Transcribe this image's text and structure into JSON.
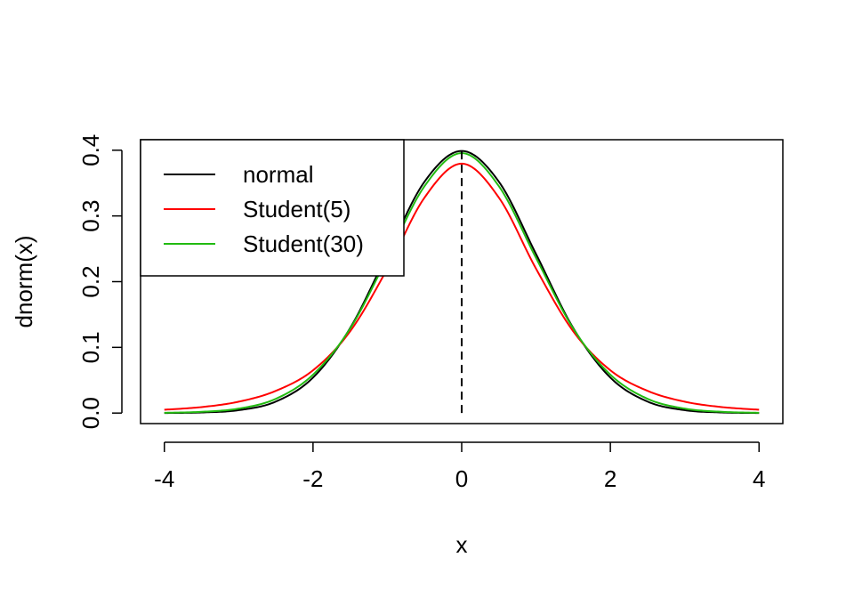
{
  "chart_data": {
    "type": "line",
    "xlabel": "x",
    "ylabel": "dnorm(x)",
    "xlim": [
      -4.32,
      4.32
    ],
    "ylim": [
      -0.016,
      0.416
    ],
    "x_ticks": [
      -4,
      -2,
      0,
      2,
      4
    ],
    "x_tick_labels": [
      "-4",
      "-2",
      "0",
      "2",
      "4"
    ],
    "y_ticks": [
      0.0,
      0.1,
      0.2,
      0.3,
      0.4
    ],
    "y_tick_labels": [
      "0.0",
      "0.1",
      "0.2",
      "0.3",
      "0.4"
    ],
    "grid": false,
    "legend_position": "top-left",
    "reference_line": {
      "x": 0,
      "style": "dashed",
      "color": "#000000"
    },
    "series": [
      {
        "name": "normal",
        "color": "#000000",
        "x": [
          -4,
          -3.5,
          -3,
          -2.5,
          -2,
          -1.5,
          -1,
          -0.5,
          0,
          0.5,
          1,
          1.5,
          2,
          2.5,
          3,
          3.5,
          4
        ],
        "y": [
          0.0001,
          0.0009,
          0.0044,
          0.0175,
          0.054,
          0.1295,
          0.242,
          0.3521,
          0.3989,
          0.3521,
          0.242,
          0.1295,
          0.054,
          0.0175,
          0.0044,
          0.0009,
          0.0001
        ]
      },
      {
        "name": "Student(5)",
        "color": "#ff0000",
        "x": [
          -4,
          -3.5,
          -3,
          -2.5,
          -2,
          -1.5,
          -1,
          -0.5,
          0,
          0.5,
          1,
          1.5,
          2,
          2.5,
          3,
          3.5,
          4
        ],
        "y": [
          0.0051,
          0.0091,
          0.0173,
          0.0338,
          0.0651,
          0.1245,
          0.2197,
          0.3279,
          0.3796,
          0.3279,
          0.2197,
          0.1245,
          0.0651,
          0.0338,
          0.0173,
          0.0091,
          0.0051
        ]
      },
      {
        "name": "Student(30)",
        "color": "#22bb11",
        "x": [
          -4,
          -3.5,
          -3,
          -2.5,
          -2,
          -1.5,
          -1,
          -0.5,
          0,
          0.5,
          1,
          1.5,
          2,
          2.5,
          3,
          3.5,
          4
        ],
        "y": [
          0.0004,
          0.0019,
          0.0068,
          0.0217,
          0.0584,
          0.1287,
          0.2361,
          0.3453,
          0.3956,
          0.3453,
          0.2361,
          0.1287,
          0.0584,
          0.0217,
          0.0068,
          0.0019,
          0.0004
        ]
      }
    ]
  }
}
